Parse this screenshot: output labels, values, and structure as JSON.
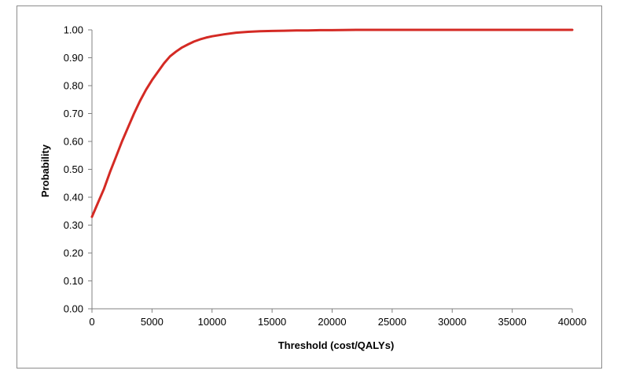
{
  "chart_data": {
    "type": "line",
    "title": "",
    "xlabel": "Threshold (cost/QALYs)",
    "ylabel": "Probability",
    "xlim": [
      0,
      40000
    ],
    "ylim": [
      0,
      1
    ],
    "x_ticks": [
      "0",
      "5000",
      "10000",
      "15000",
      "20000",
      "25000",
      "30000",
      "35000",
      "40000"
    ],
    "y_ticks": [
      "0.00",
      "0.10",
      "0.20",
      "0.30",
      "0.40",
      "0.50",
      "0.60",
      "0.70",
      "0.80",
      "0.90",
      "1.00"
    ],
    "grid": false,
    "legend": "none",
    "series": [
      {
        "color": "#d42a24",
        "x": [
          0,
          500,
          1000,
          1500,
          2000,
          2500,
          3000,
          3500,
          4000,
          4500,
          5000,
          5500,
          6000,
          6500,
          7000,
          7500,
          8000,
          8500,
          9000,
          9500,
          10000,
          11000,
          12000,
          13000,
          14000,
          15000,
          16000,
          17000,
          18000,
          19000,
          20000,
          22000,
          25000,
          30000,
          35000,
          40000
        ],
        "y": [
          0.33,
          0.38,
          0.43,
          0.49,
          0.545,
          0.6,
          0.65,
          0.7,
          0.745,
          0.785,
          0.82,
          0.85,
          0.88,
          0.905,
          0.922,
          0.937,
          0.948,
          0.958,
          0.966,
          0.972,
          0.977,
          0.984,
          0.99,
          0.993,
          0.995,
          0.996,
          0.997,
          0.998,
          0.998,
          0.999,
          0.999,
          1.0,
          1.0,
          1.0,
          1.0,
          1.0
        ]
      }
    ]
  }
}
